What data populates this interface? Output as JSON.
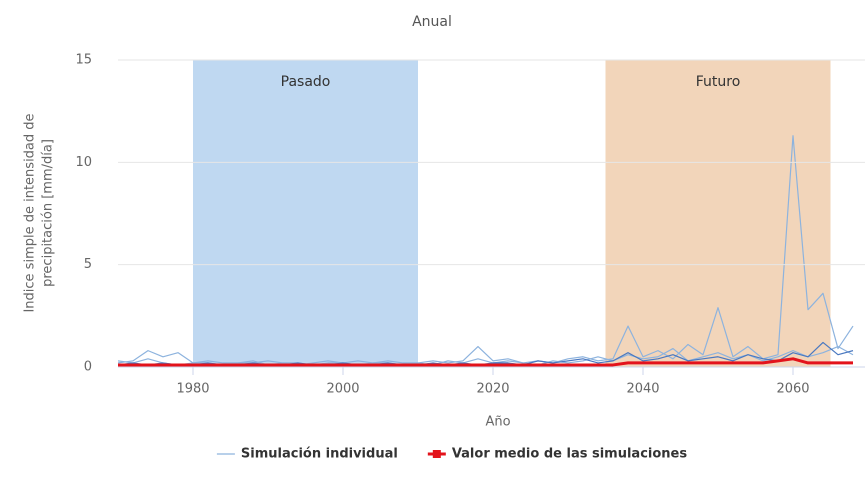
{
  "chart_data": {
    "type": "line",
    "title": "Anual",
    "xlabel": "Año",
    "ylabel": [
      "Indice simple de intensidad de",
      "precipitación [mm/día]"
    ],
    "xlim": [
      1970,
      2070
    ],
    "xticks": [
      1980,
      2000,
      2020,
      2040,
      2060
    ],
    "ylim": [
      0,
      15
    ],
    "yticks": [
      0,
      5,
      10,
      15
    ],
    "grid": true,
    "legend": "bottom",
    "bands": [
      {
        "label": "Pasado",
        "start": 1980,
        "end": 2010,
        "color": "#bfd8f1"
      },
      {
        "label": "Futuro",
        "start": 2035,
        "end": 2065,
        "color": "#f2d5ba"
      }
    ],
    "x": [
      1970,
      1972,
      1974,
      1976,
      1978,
      1980,
      1982,
      1984,
      1986,
      1988,
      1990,
      1992,
      1994,
      1996,
      1998,
      2000,
      2002,
      2004,
      2006,
      2008,
      2010,
      2012,
      2014,
      2016,
      2018,
      2020,
      2022,
      2024,
      2026,
      2028,
      2030,
      2032,
      2034,
      2036,
      2038,
      2040,
      2042,
      2044,
      2046,
      2048,
      2050,
      2052,
      2054,
      2056,
      2058,
      2060,
      2062,
      2064,
      2066,
      2068
    ],
    "series": [
      {
        "name": "Simulación individual",
        "color": "#8db3de",
        "width": 1.2,
        "values": [
          0.2,
          0.3,
          0.8,
          0.5,
          0.7,
          0.2,
          0.3,
          0.2,
          0.2,
          0.3,
          0.1,
          0.2,
          0.2,
          0.1,
          0.2,
          0.2,
          0.3,
          0.2,
          0.2,
          0.1,
          0.2,
          0.3,
          0.2,
          0.3,
          1.0,
          0.3,
          0.4,
          0.2,
          0.3,
          0.2,
          0.4,
          0.5,
          0.3,
          0.4,
          2.0,
          0.5,
          0.8,
          0.4,
          1.1,
          0.6,
          2.9,
          0.5,
          1.0,
          0.4,
          0.6,
          11.3,
          2.8,
          3.6,
          0.9,
          2.0
        ]
      },
      {
        "name": "Simulación individual",
        "color": "#8db3de",
        "width": 1.2,
        "values": [
          0.3,
          0.2,
          0.4,
          0.2,
          0.1,
          0.2,
          0.2,
          0.1,
          0.2,
          0.2,
          0.3,
          0.2,
          0.1,
          0.2,
          0.3,
          0.2,
          0.1,
          0.2,
          0.3,
          0.2,
          0.2,
          0.1,
          0.3,
          0.2,
          0.4,
          0.2,
          0.3,
          0.2,
          0.1,
          0.3,
          0.2,
          0.3,
          0.5,
          0.3,
          0.6,
          0.4,
          0.5,
          0.9,
          0.3,
          0.5,
          0.7,
          0.4,
          0.6,
          0.3,
          0.5,
          0.8,
          0.5,
          0.7,
          1.0,
          0.6
        ]
      },
      {
        "name": "Simulación individual",
        "color": "#4a78c0",
        "width": 1.2,
        "values": [
          0.1,
          0.2,
          0.1,
          0.2,
          0.1,
          0.1,
          0.2,
          0.1,
          0.1,
          0.2,
          0.1,
          0.1,
          0.2,
          0.1,
          0.1,
          0.2,
          0.1,
          0.1,
          0.2,
          0.1,
          0.1,
          0.2,
          0.1,
          0.2,
          0.1,
          0.2,
          0.2,
          0.1,
          0.3,
          0.2,
          0.3,
          0.4,
          0.2,
          0.3,
          0.7,
          0.3,
          0.4,
          0.6,
          0.3,
          0.4,
          0.5,
          0.3,
          0.6,
          0.4,
          0.3,
          0.7,
          0.5,
          1.2,
          0.6,
          0.8
        ]
      },
      {
        "name": "Valor medio de las simulaciones",
        "color": "#e3131b",
        "width": 3,
        "marker": true,
        "values": [
          0.1,
          0.1,
          0.1,
          0.1,
          0.1,
          0.1,
          0.1,
          0.1,
          0.1,
          0.1,
          0.1,
          0.1,
          0.1,
          0.1,
          0.1,
          0.1,
          0.1,
          0.1,
          0.1,
          0.1,
          0.1,
          0.1,
          0.1,
          0.1,
          0.1,
          0.1,
          0.1,
          0.1,
          0.1,
          0.1,
          0.1,
          0.1,
          0.1,
          0.1,
          0.2,
          0.2,
          0.2,
          0.2,
          0.2,
          0.2,
          0.2,
          0.2,
          0.2,
          0.2,
          0.3,
          0.4,
          0.2,
          0.2,
          0.2,
          0.2
        ]
      }
    ]
  }
}
